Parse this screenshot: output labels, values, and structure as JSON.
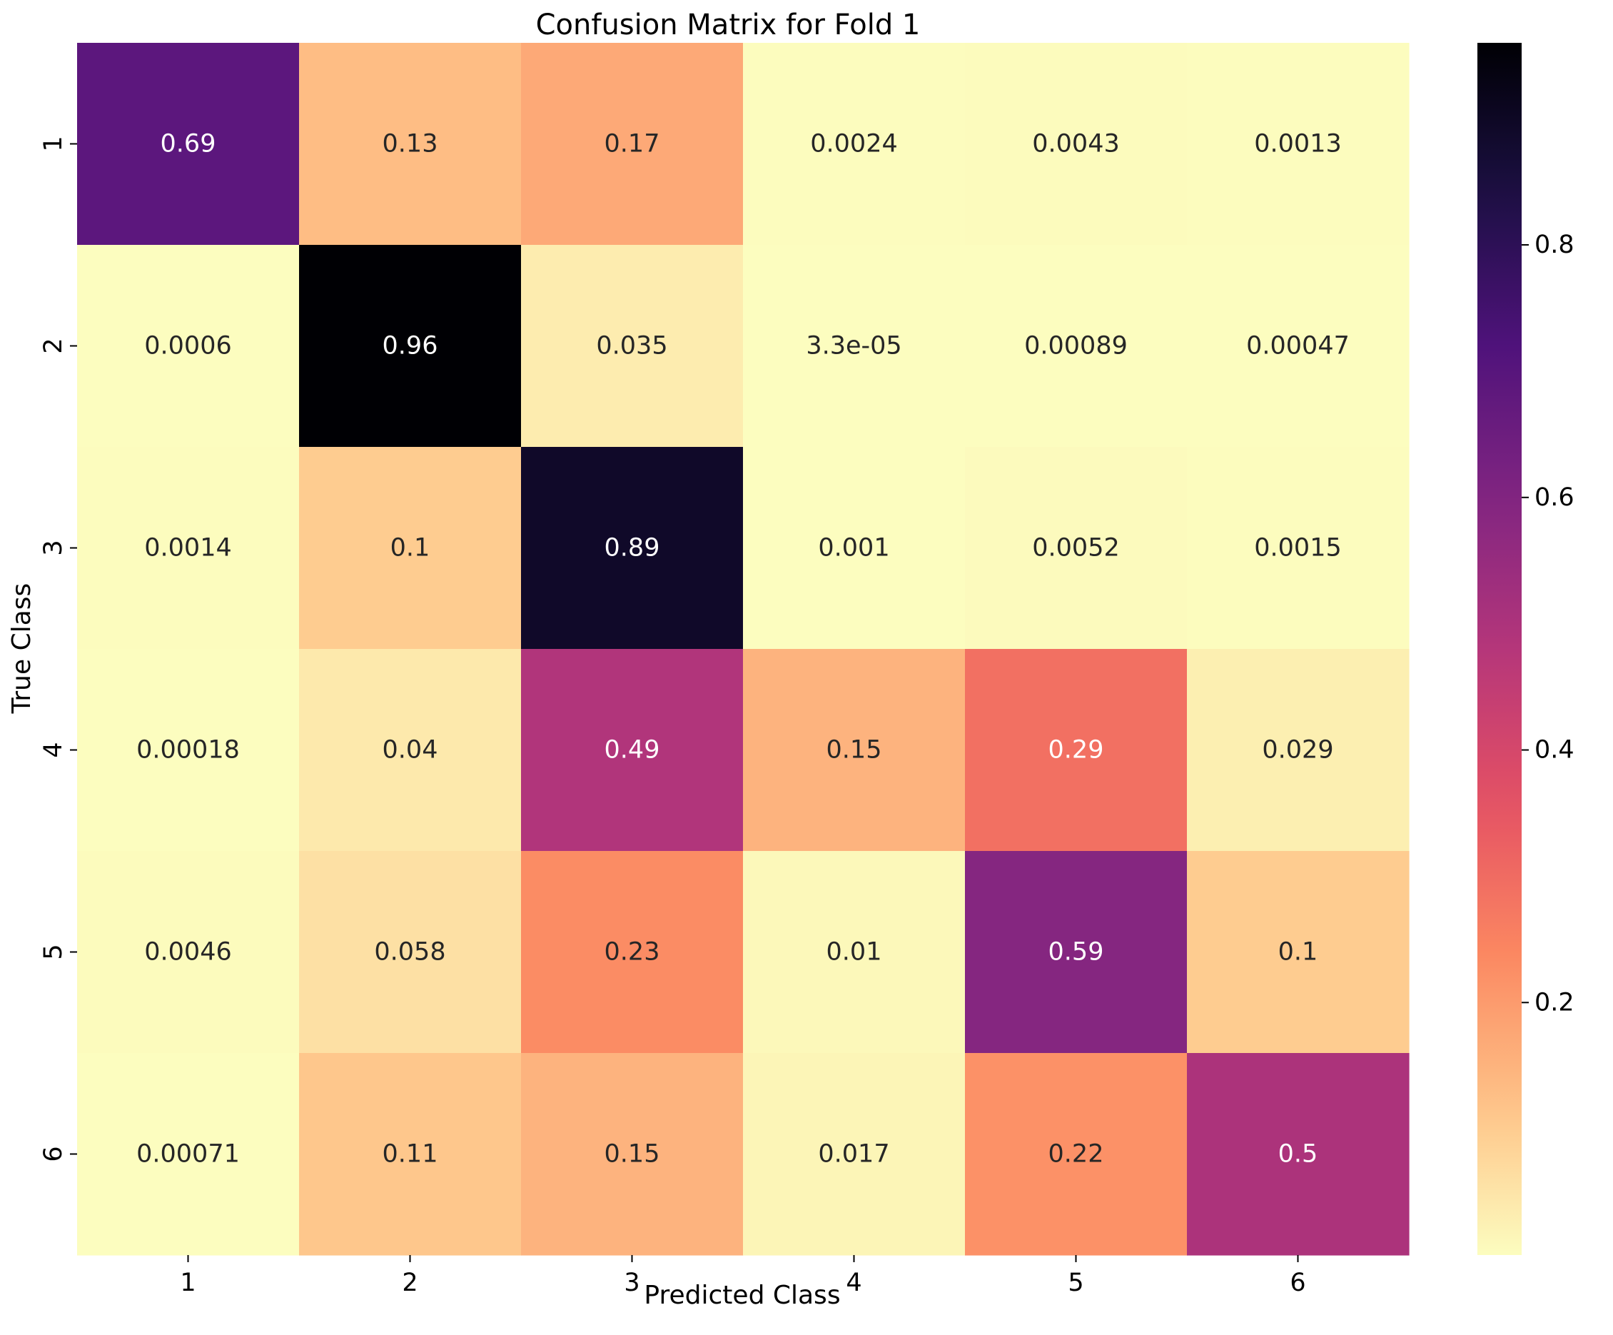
{
  "chart_data": {
    "type": "heatmap",
    "title": "Confusion Matrix for Fold 1",
    "xlabel": "Predicted Class",
    "ylabel": "True Class",
    "x_categories": [
      "1",
      "2",
      "3",
      "4",
      "5",
      "6"
    ],
    "y_categories": [
      "1",
      "2",
      "3",
      "4",
      "5",
      "6"
    ],
    "values": [
      [
        0.69,
        0.13,
        0.17,
        0.0024,
        0.0043,
        0.0013
      ],
      [
        0.0006,
        0.96,
        0.035,
        3.3e-05,
        0.00089,
        0.00047
      ],
      [
        0.0014,
        0.1,
        0.89,
        0.001,
        0.0052,
        0.0015
      ],
      [
        0.00018,
        0.04,
        0.49,
        0.15,
        0.29,
        0.029
      ],
      [
        0.0046,
        0.058,
        0.23,
        0.01,
        0.59,
        0.1
      ],
      [
        0.00071,
        0.11,
        0.15,
        0.017,
        0.22,
        0.5
      ]
    ],
    "annotations": [
      [
        "0.69",
        "0.13",
        "0.17",
        "0.0024",
        "0.0043",
        "0.0013"
      ],
      [
        "0.0006",
        "0.96",
        "0.035",
        "3.3e-05",
        "0.00089",
        "0.00047"
      ],
      [
        "0.0014",
        "0.1",
        "0.89",
        "0.001",
        "0.0052",
        "0.0015"
      ],
      [
        "0.00018",
        "0.04",
        "0.49",
        "0.15",
        "0.29",
        "0.029"
      ],
      [
        "0.0046",
        "0.058",
        "0.23",
        "0.01",
        "0.59",
        "0.1"
      ],
      [
        "0.00071",
        "0.11",
        "0.15",
        "0.017",
        "0.22",
        "0.5"
      ]
    ],
    "colormap": "magma_r",
    "color_range": [
      3.3e-05,
      0.96
    ],
    "colorbar_ticks": [
      "0.2",
      "0.4",
      "0.6",
      "0.8"
    ],
    "grid": false
  }
}
